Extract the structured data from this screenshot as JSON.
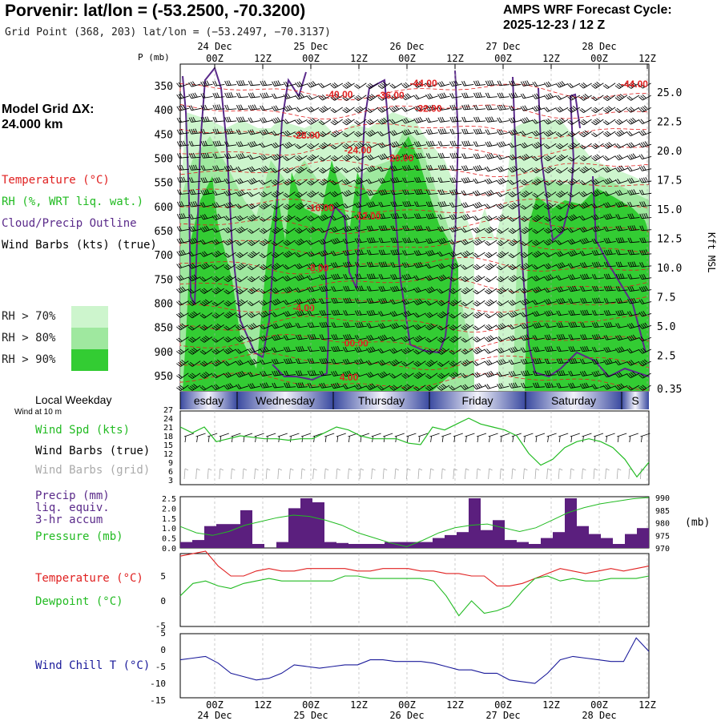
{
  "header": {
    "title": "Porvenir:  lat/lon = (-53.2500, -70.3200)",
    "grid_point": "Grid Point (368, 203) lat/lon = (−53.2497, −70.3137)",
    "cycle_line1": "AMPS WRF Forecast Cycle:",
    "cycle_line2": "2025-12-23 / 12  Z"
  },
  "left_panel": {
    "model_grid_line1": "Model Grid ΔX:",
    "model_grid_line2": " 24.000 km",
    "legend_temperature": "Temperature (°C)",
    "legend_rh": "RH (%, WRT liq. wat.)",
    "legend_cloud": "Cloud/Precip Outline",
    "legend_wind": "Wind Barbs (kts) (true)",
    "rh70": "RH > 70%",
    "rh80": "RH > 80%",
    "rh90": "RH > 90%",
    "local_weekday": "Local Weekday",
    "wind_at_10m": "Wind at 10 m",
    "wind_spd_label": "Wind Spd (kts)",
    "wind_barbs_true": "Wind Barbs (true)",
    "wind_barbs_grid": "Wind Barbs (grid)",
    "precip_line1": "Precip (mm)",
    "precip_line2": "liq. equiv.",
    "precip_line3": "3-hr accum",
    "pressure_label": "Pressure (mb)",
    "temperature_label": "Temperature (°C)",
    "dewpoint_label": "Dewpoint (°C)",
    "windchill_label": "Wind Chill T (°C)"
  },
  "colors": {
    "temperature": "#e02020",
    "rh": "#22bb22",
    "cloud": "#5a2a8a",
    "wind": "#000000",
    "windchill": "#1a1a9a",
    "precip": "#5b1f7e",
    "pressure": "#22bb22",
    "rh70": "#cdf5cd",
    "rh80": "#9fe89f",
    "rh90": "#33cc33"
  },
  "chart_data": [
    {
      "type": "heatmap",
      "panel": "vertical cross-section",
      "x_top_labels": [
        "00Z",
        "12Z",
        "00Z",
        "12Z",
        "00Z",
        "12Z",
        "00Z",
        "12Z",
        "00Z",
        "12Z"
      ],
      "date_labels": [
        "24 Dec",
        "25 Dec",
        "26 Dec",
        "27 Dec",
        "28 Dec"
      ],
      "y_pressure_label": "P (mb)",
      "y_pressure_ticks": [
        "350",
        "400",
        "450",
        "500",
        "550",
        "600",
        "650",
        "700",
        "750",
        "800",
        "850",
        "900",
        "950"
      ],
      "y_height_ticks": [
        "25.0",
        "22.5",
        "20.0",
        "17.5",
        "15.0",
        "12.5",
        "10.0",
        "7.5",
        "5.0",
        "2.5",
        "0.35"
      ],
      "y_height_label": "Kft MSL",
      "temperature_labels": [
        {
          "text": "-44.00",
          "t": 0.49,
          "p": 350
        },
        {
          "text": "-44.00",
          "t": 0.94,
          "p": 352
        },
        {
          "text": "-40.00",
          "t": 0.31,
          "p": 373
        },
        {
          "text": "-36.00",
          "t": 0.42,
          "p": 375
        },
        {
          "text": "-32.00",
          "t": 0.5,
          "p": 402
        },
        {
          "text": "-28.00",
          "t": 0.24,
          "p": 458
        },
        {
          "text": "-24.00",
          "t": 0.35,
          "p": 488
        },
        {
          "text": "-20.00",
          "t": 0.44,
          "p": 505
        },
        {
          "text": "-16.00",
          "t": 0.27,
          "p": 608
        },
        {
          "text": "-12.00",
          "t": 0.37,
          "p": 625
        },
        {
          "text": "-8.00",
          "t": 0.27,
          "p": 732
        },
        {
          "text": "-4.00",
          "t": 0.24,
          "p": 815
        },
        {
          "text": "00.00",
          "t": 0.35,
          "p": 888
        },
        {
          "text": "4.00",
          "t": 0.34,
          "p": 958
        }
      ]
    },
    {
      "type": "line",
      "panel": "10 m wind",
      "weekdays": [
        "esday",
        "Wednesday",
        "Thursday",
        "Friday",
        "Saturday",
        "S"
      ],
      "yticks": [
        3,
        6,
        9,
        12,
        15,
        18,
        21,
        24,
        27
      ],
      "ylim": [
        3,
        27
      ],
      "series": [
        {
          "name": "Wind Spd (kts)",
          "values": [
            21,
            19,
            21,
            16,
            17,
            18,
            17.5,
            17,
            17,
            16.5,
            17,
            17,
            19,
            21,
            20,
            18,
            17,
            17,
            17,
            15.5,
            15,
            21,
            20,
            22,
            24,
            22,
            21,
            20,
            18,
            12,
            8,
            10,
            14,
            16,
            17,
            16,
            14,
            10,
            4,
            9
          ]
        }
      ]
    },
    {
      "type": "bar",
      "panel": "precip and pressure",
      "y_left_ticks": [
        "0.0",
        "0.5",
        "1.0",
        "1.5",
        "2.0",
        "2.5"
      ],
      "y_right_ticks": [
        "970",
        "975",
        "980",
        "985",
        "990"
      ],
      "y_right_label": "(mb)",
      "series": [
        {
          "name": "Precip (mm)",
          "values": [
            0.3,
            0.4,
            1.1,
            1.2,
            1.2,
            1.9,
            0.2,
            0,
            0.3,
            2.0,
            2.5,
            2.3,
            0.3,
            0.25,
            0.2,
            0.2,
            0.2,
            0.3,
            0.3,
            0.3,
            0.3,
            0.5,
            0.65,
            0.8,
            2.5,
            0.9,
            1.4,
            0.4,
            0.3,
            0.2,
            0.5,
            0.8,
            2.5,
            1.1,
            0.7,
            0.5,
            0.2,
            0.7,
            1.0
          ]
        },
        {
          "name": "Pressure (mb)",
          "values": [
            978.5,
            976,
            975,
            976.5,
            979,
            980.5,
            982,
            983,
            982.5,
            981,
            979,
            976,
            974,
            972,
            970.5,
            973,
            976,
            978,
            979,
            979.5,
            978,
            976.5,
            978,
            981,
            984,
            986,
            987.5,
            988.5,
            989.5,
            990
          ]
        }
      ]
    },
    {
      "type": "line",
      "panel": "temperature and dewpoint",
      "yticks": [
        "-5",
        "0",
        "5"
      ],
      "ylim": [
        -5,
        10
      ],
      "series": [
        {
          "name": "Temperature (°C)",
          "values": [
            9,
            9.5,
            10,
            7,
            5,
            5,
            6,
            6.5,
            6,
            6,
            6.5,
            6.5,
            6.5,
            6.5,
            6,
            6,
            6.5,
            6.5,
            6.5,
            6,
            6,
            5.5,
            5.5,
            5,
            5,
            3,
            3,
            3.5,
            4.5,
            5.5,
            6.5,
            6,
            5.5,
            6,
            6.5,
            6,
            6.5,
            7
          ]
        },
        {
          "name": "Dewpoint (°C)",
          "values": [
            1,
            3.5,
            4,
            3,
            2.5,
            3.5,
            4,
            4.5,
            4,
            4,
            4,
            4,
            4,
            5,
            5,
            4.5,
            4.5,
            4.5,
            4.5,
            4.5,
            4,
            1,
            -3,
            0,
            -2.5,
            -2,
            -1,
            2,
            4.5,
            5,
            4,
            4.5,
            4,
            4,
            4.5,
            4.5,
            4.5,
            5
          ]
        }
      ]
    },
    {
      "type": "line",
      "panel": "wind chill",
      "yticks": [
        "-15",
        "-10",
        "-5",
        "0",
        "5"
      ],
      "ylim": [
        -15,
        5
      ],
      "series": [
        {
          "name": "Wind Chill T (°C)",
          "values": [
            -3,
            -2.5,
            -2,
            -4,
            -7,
            -8,
            -9,
            -8.5,
            -7,
            -4.5,
            -5,
            -5.5,
            -5,
            -4.5,
            -4.5,
            -3,
            -3,
            -3.5,
            -3.5,
            -3.5,
            -4,
            -5,
            -6,
            -6,
            -7,
            -7,
            -9,
            -9.5,
            -10,
            -7,
            -3,
            -2,
            -2.5,
            -3,
            -3.5,
            -3.5,
            3.5,
            -0.5
          ]
        }
      ]
    }
  ],
  "bottom_axis": {
    "x_labels": [
      "00Z",
      "12Z",
      "00Z",
      "12Z",
      "00Z",
      "12Z",
      "00Z",
      "12Z",
      "00Z",
      "12Z"
    ],
    "date_labels": [
      "24 Dec",
      "25 Dec",
      "26 Dec",
      "27 Dec",
      "28 Dec"
    ]
  }
}
